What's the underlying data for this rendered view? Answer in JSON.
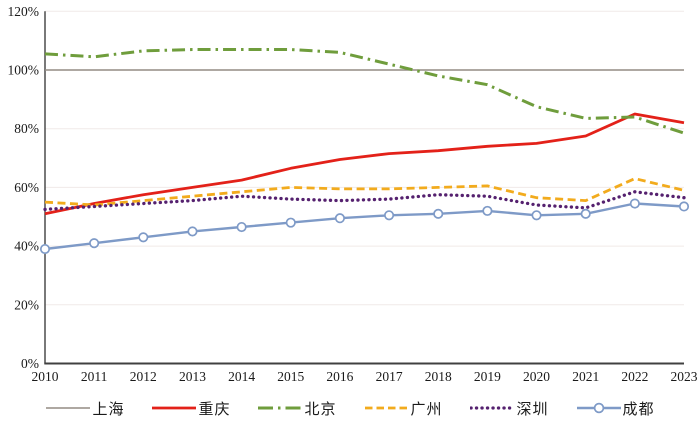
{
  "chart_data": {
    "type": "line",
    "title": "",
    "xlabel": "",
    "ylabel": "",
    "x": [
      2010,
      2011,
      2012,
      2013,
      2014,
      2015,
      2016,
      2017,
      2018,
      2019,
      2020,
      2021,
      2022,
      2023
    ],
    "xtick_labels": [
      "2010",
      "2011",
      "2012",
      "2013",
      "2014",
      "2015",
      "2016",
      "2017",
      "2018",
      "2019",
      "2020",
      "2021",
      "2022",
      "2023"
    ],
    "ylim": [
      0,
      120
    ],
    "ytick_step": 20,
    "ytick_labels": [
      "0%",
      "20%",
      "40%",
      "60%",
      "80%",
      "100%",
      "120%"
    ],
    "grid": true,
    "legend_position": "bottom",
    "series": [
      {
        "id": "shanghai",
        "name": "上海",
        "color": "#948c84",
        "style": "solid",
        "width": 1.6,
        "marker": "none",
        "values": [
          100,
          100,
          100,
          100,
          100,
          100,
          100,
          100,
          100,
          100,
          100,
          100,
          100,
          100
        ]
      },
      {
        "id": "chongqing",
        "name": "重庆",
        "color": "#e32119",
        "style": "solid",
        "width": 2.8,
        "marker": "none",
        "values": [
          51,
          54.5,
          57.5,
          60,
          62.5,
          66.5,
          69.5,
          71.5,
          72.5,
          74,
          75,
          77.5,
          85,
          82
        ]
      },
      {
        "id": "beijing",
        "name": "北京",
        "color": "#6f9d3c",
        "style": "dashdot",
        "width": 3.0,
        "marker": "none",
        "values": [
          105.5,
          104.5,
          106.5,
          107,
          107,
          107,
          106,
          102,
          98,
          95,
          87.5,
          83.5,
          84,
          78.5
        ]
      },
      {
        "id": "guangzhou",
        "name": "广州",
        "color": "#f2ab1d",
        "style": "dashed",
        "width": 2.8,
        "marker": "none",
        "values": [
          55,
          54,
          55.5,
          57,
          58.5,
          60,
          59.5,
          59.5,
          60,
          60.5,
          56.5,
          55.5,
          63,
          59
        ]
      },
      {
        "id": "shenzhen",
        "name": "深圳",
        "color": "#55216f",
        "style": "dotted",
        "width": 3.3,
        "marker": "none",
        "values": [
          52.5,
          53.5,
          54.5,
          55.5,
          57,
          56,
          55.5,
          56,
          57.5,
          57,
          54,
          53,
          58.5,
          56.5
        ]
      },
      {
        "id": "chengdu",
        "name": "成都",
        "color": "#7e9ac7",
        "style": "solid",
        "width": 2.4,
        "marker": "circle",
        "values": [
          39,
          41,
          43,
          45,
          46.5,
          48,
          49.5,
          50.5,
          51,
          52,
          50.5,
          51,
          54.5,
          53.5
        ]
      }
    ]
  },
  "colors": {
    "background": "#ffffff",
    "axis": "#404040",
    "grid": "#f0eae8",
    "tick_text": "#1a1a1a"
  }
}
